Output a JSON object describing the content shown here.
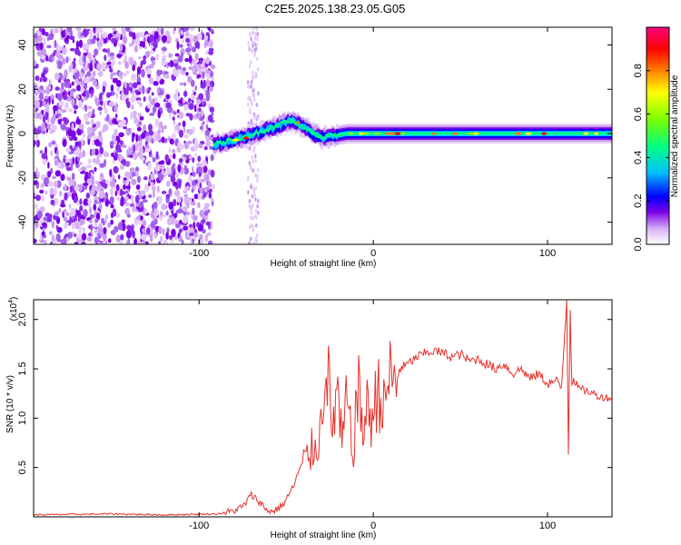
{
  "title": "C2E5.2025.138.23.05.G05",
  "chart_data": [
    {
      "type": "heatmap",
      "xlabel": "Height of straight line (km)",
      "ylabel": "Frequency (Hz)",
      "xlim": [
        -195,
        137
      ],
      "ylim": [
        -50,
        48
      ],
      "x_ticks": [
        -100,
        0,
        100
      ],
      "y_ticks": [
        -40,
        -20,
        0,
        20,
        40
      ],
      "tick_labels_x": [
        "-100",
        "0",
        "100"
      ],
      "tick_labels_y": [
        "-40",
        "-20",
        "0",
        "20",
        "40"
      ],
      "colorbar": {
        "label": "Normalized spectral amplitude",
        "range": [
          0,
          1
        ],
        "ticks": [
          0.0,
          0.2,
          0.4,
          0.6,
          0.8
        ],
        "tick_labels": [
          "0.0",
          "0.2",
          "0.4",
          "0.6",
          "0.8"
        ],
        "colors": [
          "#ffffff",
          "#d9b3f5",
          "#7a00e6",
          "#0000ff",
          "#00bfff",
          "#00ff80",
          "#80ff00",
          "#ffff00",
          "#ff8000",
          "#ff0000",
          "#ff0080"
        ]
      },
      "regions": [
        {
          "name": "scattered noise",
          "x_range": [
            -195,
            -92
          ],
          "y_range": [
            -50,
            48
          ]
        },
        {
          "name": "isolated streak",
          "x_range": [
            -72,
            -66
          ],
          "y_range": [
            -50,
            48
          ]
        },
        {
          "name": "signal band",
          "x_range": [
            -92,
            137
          ],
          "center_freq_hz": [
            [
              -92,
              -5
            ],
            [
              -75,
              -2
            ],
            [
              -60,
              2
            ],
            [
              -47,
              6
            ],
            [
              -40,
              3
            ],
            [
              -30,
              -2
            ],
            [
              -15,
              0
            ],
            [
              0,
              0
            ],
            [
              60,
              0
            ],
            [
              100,
              0
            ],
            [
              137,
              0
            ]
          ]
        }
      ]
    },
    {
      "type": "line",
      "xlabel": "Height of straight line (km)",
      "ylabel": "SNR (10 * v/v)",
      "multiplier_label": "(x10",
      "multiplier_exp": "4",
      "xlim": [
        -195,
        137
      ],
      "ylim": [
        0,
        2.2
      ],
      "x_ticks": [
        -100,
        0,
        100
      ],
      "y_ticks": [
        0.5,
        1.0,
        1.5,
        2.0
      ],
      "tick_labels_x": [
        "-100",
        "0",
        "100"
      ],
      "tick_labels_y": [
        "0.5",
        "1.0",
        "1.5",
        "2.0"
      ],
      "series": [
        {
          "color": "#e8302a",
          "x": [
            -195,
            -150,
            -120,
            -90,
            -82,
            -75,
            -70,
            -65,
            -62,
            -58,
            -52,
            -46,
            -42,
            -38,
            -34,
            -30,
            -27,
            -24,
            -21,
            -18,
            -15,
            -12,
            -9,
            -6,
            -3,
            0,
            3,
            6,
            9,
            12,
            15,
            20,
            25,
            30,
            35,
            40,
            45,
            50,
            55,
            60,
            65,
            70,
            75,
            80,
            85,
            90,
            95,
            100,
            105,
            108,
            111,
            112,
            113,
            114,
            115,
            118,
            122,
            126,
            130,
            137
          ],
          "y": [
            0.02,
            0.03,
            0.02,
            0.03,
            0.05,
            0.1,
            0.22,
            0.15,
            0.08,
            0.05,
            0.12,
            0.3,
            0.5,
            0.6,
            0.7,
            0.9,
            1.8,
            0.8,
            1.3,
            0.7,
            1.2,
            0.6,
            1.3,
            0.9,
            1.1,
            1.0,
            1.35,
            1.05,
            1.45,
            1.3,
            1.5,
            1.55,
            1.62,
            1.66,
            1.68,
            1.66,
            1.62,
            1.65,
            1.58,
            1.6,
            1.55,
            1.5,
            1.55,
            1.45,
            1.5,
            1.4,
            1.45,
            1.35,
            1.38,
            1.3,
            2.2,
            0.65,
            2.1,
            1.35,
            1.4,
            1.3,
            1.28,
            1.25,
            1.22,
            1.2
          ]
        }
      ]
    }
  ]
}
